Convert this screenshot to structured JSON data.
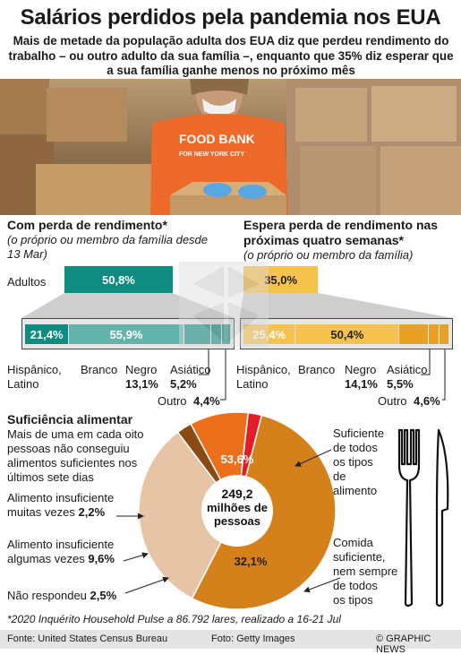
{
  "title": "Salários perdidos pela pandemia nos EUA",
  "subtitle": "Mais de metade da população adulta dos EUA diz que perdeu rendimento do trabalho – ou outro adulto da sua família –, enquanto que 35% diz esperar que a sua família ganhe menos no próximo mês",
  "photo": {
    "shirt_line1": "FOOD BANK",
    "shirt_line2": "FOR NEW YORK CITY"
  },
  "colors": {
    "teal": "#0f8c82",
    "teal_light": "#62b3aa",
    "orange": "#e9a124",
    "orange_light": "#f6c24c",
    "pie_dark_orange": "#d4801b",
    "pie_light": "#e8c4a7",
    "pie_red": "#e21d28",
    "pie_orange": "#ec6f1c",
    "pie_brown": "#8a4a12"
  },
  "chart_data": [
    {
      "type": "bar",
      "title": "Com perda de rendimento*",
      "subtitle": "(o próprio ou membro da família desde 13 Mar)",
      "unit": "%",
      "adults": {
        "label": "Adultos",
        "value": 50.8
      },
      "categories": [
        "Hispânico, Latino",
        "Branco",
        "Negro",
        "Asiático",
        "Outro"
      ],
      "values": [
        21.4,
        55.9,
        13.1,
        5.2,
        4.4
      ],
      "labels": [
        "21,4%",
        "55,9%",
        "13,1%",
        "5,2%",
        "4,4%"
      ],
      "adult_label": "50,8%"
    },
    {
      "type": "bar",
      "title": "Espera perda de rendimento nas próximas quatro semanas*",
      "subtitle": "(o próprio ou membro da família)",
      "unit": "%",
      "adults": {
        "label": "Adultos",
        "value": 35.0
      },
      "categories": [
        "Hispânico, Latino",
        "Branco",
        "Negro",
        "Asiático",
        "Outro"
      ],
      "values": [
        25.4,
        50.4,
        14.1,
        5.5,
        4.6
      ],
      "labels": [
        "25,4%",
        "50,4%",
        "14,1%",
        "5,5%",
        "4,6%"
      ],
      "adult_label": "35,0%"
    },
    {
      "type": "pie",
      "title": "Suficiência alimentar",
      "description": "Mais de uma em cada oito pessoas não conseguiu alimentos suficientes nos últimos sete dias",
      "center_value": "249,2",
      "center_text": "milhões de pessoas",
      "slices": [
        {
          "name": "Suficiente de todos os tipos de alimento",
          "value": 53.6,
          "label": "53,6%"
        },
        {
          "name": "Comida suficiente, nem sempre de todos os tipos",
          "value": 32.1,
          "label": "32,1%"
        },
        {
          "name": "Não respondeu",
          "value": 2.5,
          "label": "2,5%"
        },
        {
          "name": "Alimento insuficiente algumas vezes",
          "value": 9.6,
          "label": "9,6%"
        },
        {
          "name": "Alimento insuficiente muitas vezes",
          "value": 2.2,
          "label": "2,2%"
        }
      ]
    }
  ],
  "labels": {
    "adults": "Adultos",
    "hisp1": "Hispânico,",
    "hisp2": "Latino",
    "white": "Branco",
    "black": "Negro",
    "asian": "Asiático",
    "other": "Outro",
    "suf1": "Suficiente",
    "suf2": "de todos",
    "suf3": "os tipos",
    "suf4": "de",
    "suf5": "alimento",
    "com1": "Comida",
    "com2": "suficiente,",
    "com3": "nem sempre",
    "com4": "de todos",
    "com5": "os tipos",
    "many1": "Alimento insuficiente",
    "many2": "muitas vezes",
    "some1": "Alimento insuficiente",
    "some2": "algumas vezes",
    "noans": "Não respondeu"
  },
  "footnote": "*2020 Inquérito Household Pulse a 86.792 lares, realizado a 16-21 Jul",
  "footer": {
    "source": "Fonte: United States Census Bureau",
    "photo": "Foto: Getty Images",
    "credit": "© GRAPHIC NEWS"
  }
}
